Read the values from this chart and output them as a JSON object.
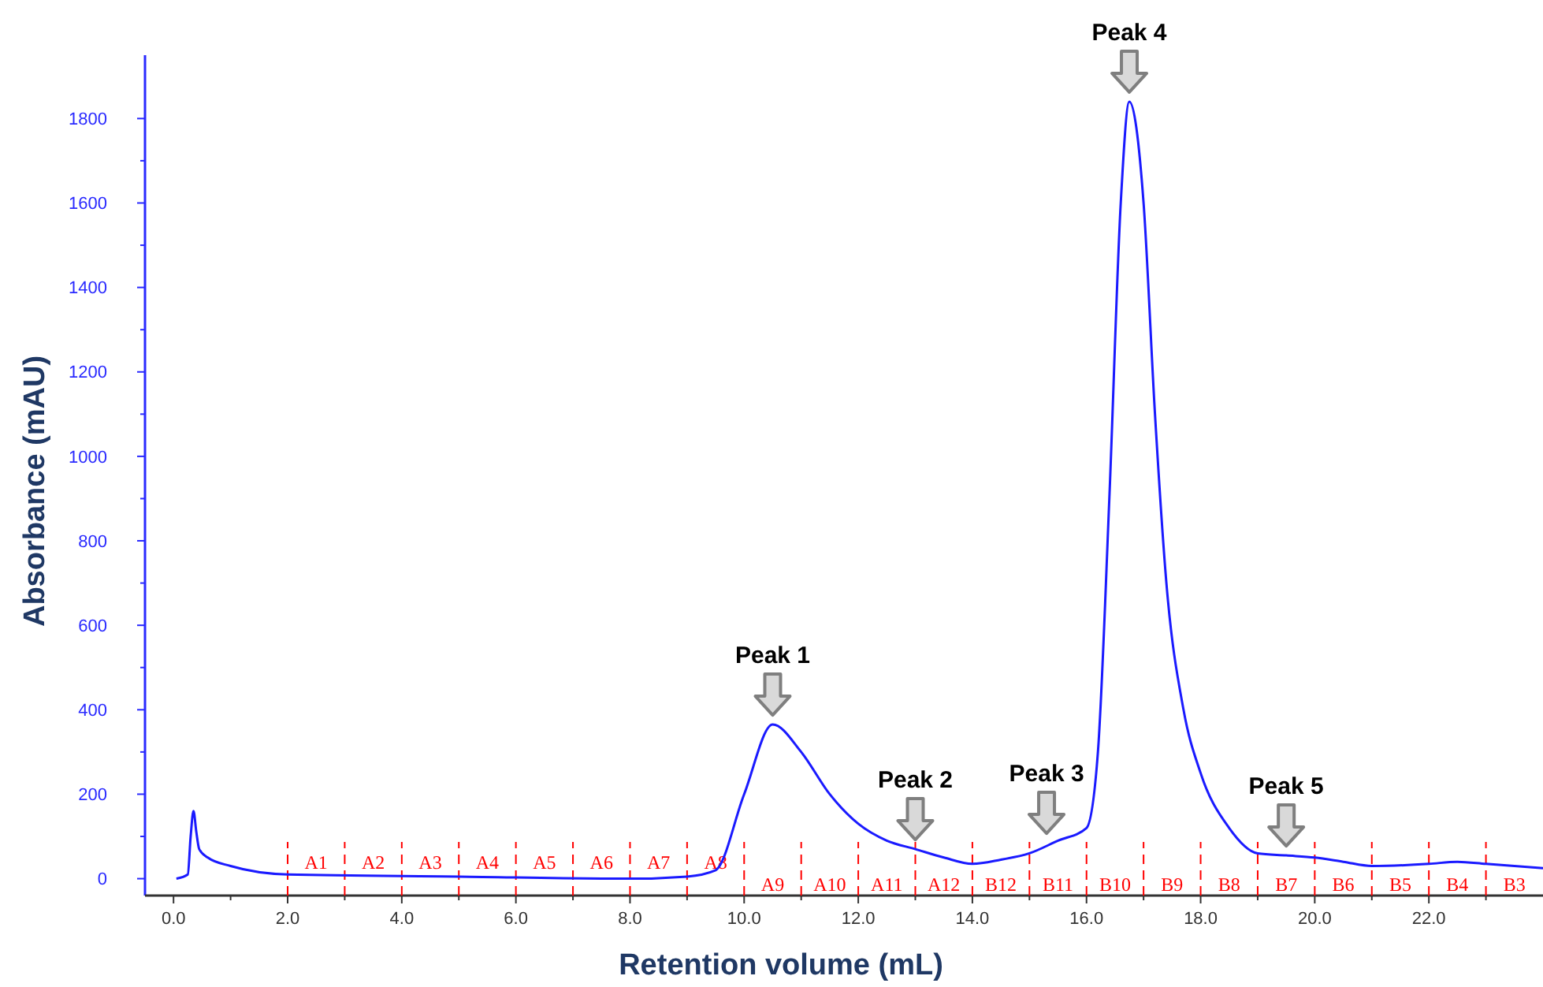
{
  "chart_data": {
    "type": "line",
    "xlabel": "Retention volume (mL)",
    "ylabel": "Absorbance (mAU)",
    "xlim": [
      -0.5,
      24
    ],
    "ylim": [
      -40,
      1950
    ],
    "xticks": [
      {
        "value": 0,
        "label": "0.0"
      },
      {
        "value": 1,
        "label": null
      },
      {
        "value": 2,
        "label": "2.0"
      },
      {
        "value": 3,
        "label": null
      },
      {
        "value": 4,
        "label": "4.0"
      },
      {
        "value": 5,
        "label": null
      },
      {
        "value": 6,
        "label": "6.0"
      },
      {
        "value": 7,
        "label": null
      },
      {
        "value": 8,
        "label": "8.0"
      },
      {
        "value": 9,
        "label": null
      },
      {
        "value": 10,
        "label": "10.0"
      },
      {
        "value": 11,
        "label": null
      },
      {
        "value": 12,
        "label": "12.0"
      },
      {
        "value": 13,
        "label": null
      },
      {
        "value": 14,
        "label": "14.0"
      },
      {
        "value": 15,
        "label": null
      },
      {
        "value": 16,
        "label": "16.0"
      },
      {
        "value": 17,
        "label": null
      },
      {
        "value": 18,
        "label": "18.0"
      },
      {
        "value": 19,
        "label": null
      },
      {
        "value": 20,
        "label": "20.0"
      },
      {
        "value": 21,
        "label": null
      },
      {
        "value": 22,
        "label": "22.0"
      },
      {
        "value": 23,
        "label": null
      }
    ],
    "yticks": [
      0,
      {
        "value": 100,
        "label": null
      },
      200,
      {
        "value": 300,
        "label": null
      },
      400,
      {
        "value": 500,
        "label": null
      },
      600,
      {
        "value": 700,
        "label": null
      },
      800,
      {
        "value": 900,
        "label": null
      },
      1000,
      {
        "value": 1100,
        "label": null
      },
      1200,
      {
        "value": 1300,
        "label": null
      },
      1400,
      {
        "value": 1500,
        "label": null
      },
      1600,
      {
        "value": 1700,
        "label": null
      },
      1800
    ],
    "grid": false,
    "marker": "none",
    "line_style": "solid",
    "series": [
      {
        "color": "#1a1aff",
        "x": [
          0.05,
          0.25,
          0.3,
          0.35,
          0.4,
          0.45,
          0.6,
          1.0,
          2.0,
          5.0,
          8.0,
          9.0,
          9.5,
          10.0,
          10.5,
          11.0,
          11.5,
          12.0,
          12.5,
          13.0,
          13.5,
          14.0,
          14.5,
          15.0,
          15.5,
          16.0,
          16.2,
          16.4,
          16.6,
          16.75,
          17.0,
          17.2,
          17.4,
          17.7,
          18.0,
          18.5,
          19.0,
          19.5,
          20.0,
          20.5,
          21.0,
          22.0,
          22.5,
          23.0,
          24.0
        ],
        "values": [
          0,
          10,
          100,
          160,
          110,
          70,
          50,
          30,
          10,
          5,
          0,
          5,
          20,
          200,
          365,
          300,
          200,
          130,
          90,
          70,
          50,
          35,
          45,
          60,
          90,
          120,
          300,
          900,
          1600,
          1840,
          1600,
          1100,
          700,
          400,
          250,
          120,
          60,
          55,
          50,
          40,
          30,
          35,
          40,
          35,
          25
        ]
      }
    ],
    "ref_lines": [
      {
        "axis": "x",
        "value": 2,
        "label": "A1",
        "color": "#ff0000",
        "line_style": "dashed"
      },
      {
        "axis": "x",
        "value": 3,
        "label": "A2",
        "color": "#ff0000",
        "line_style": "dashed"
      },
      {
        "axis": "x",
        "value": 4,
        "label": "A3",
        "color": "#ff0000",
        "line_style": "dashed"
      },
      {
        "axis": "x",
        "value": 5,
        "label": "A4",
        "color": "#ff0000",
        "line_style": "dashed"
      },
      {
        "axis": "x",
        "value": 6,
        "label": "A5",
        "color": "#ff0000",
        "line_style": "dashed"
      },
      {
        "axis": "x",
        "value": 7,
        "label": "A6",
        "color": "#ff0000",
        "line_style": "dashed"
      },
      {
        "axis": "x",
        "value": 8,
        "label": "A7",
        "color": "#ff0000",
        "line_style": "dashed"
      },
      {
        "axis": "x",
        "value": 9,
        "label": "A8",
        "color": "#ff0000",
        "line_style": "dashed"
      },
      {
        "axis": "x",
        "value": 10,
        "label": "A9",
        "color": "#ff0000",
        "line_style": "dashed"
      },
      {
        "axis": "x",
        "value": 11,
        "label": "A10",
        "color": "#ff0000",
        "line_style": "dashed"
      },
      {
        "axis": "x",
        "value": 12,
        "label": "A11",
        "color": "#ff0000",
        "line_style": "dashed"
      },
      {
        "axis": "x",
        "value": 13,
        "label": "A12",
        "color": "#ff0000",
        "line_style": "dashed"
      },
      {
        "axis": "x",
        "value": 14,
        "label": "B12",
        "color": "#ff0000",
        "line_style": "dashed"
      },
      {
        "axis": "x",
        "value": 15,
        "label": "B11",
        "color": "#ff0000",
        "line_style": "dashed"
      },
      {
        "axis": "x",
        "value": 16,
        "label": "B10",
        "color": "#ff0000",
        "line_style": "dashed"
      },
      {
        "axis": "x",
        "value": 17,
        "label": "B9",
        "color": "#ff0000",
        "line_style": "dashed"
      },
      {
        "axis": "x",
        "value": 18,
        "label": "B8",
        "color": "#ff0000",
        "line_style": "dashed"
      },
      {
        "axis": "x",
        "value": 19,
        "label": "B7",
        "color": "#ff0000",
        "line_style": "dashed"
      },
      {
        "axis": "x",
        "value": 20,
        "label": "B6",
        "color": "#ff0000",
        "line_style": "dashed"
      },
      {
        "axis": "x",
        "value": 21,
        "label": "B5",
        "color": "#ff0000",
        "line_style": "dashed"
      },
      {
        "axis": "x",
        "value": 22,
        "label": "B4",
        "color": "#ff0000",
        "line_style": "dashed"
      },
      {
        "axis": "x",
        "value": 23,
        "label": "B3",
        "color": "#ff0000",
        "line_style": "dashed"
      }
    ],
    "annotations": [
      {
        "text": "Peak 1",
        "x": 10.5,
        "y": 365
      },
      {
        "text": "Peak 2",
        "x": 13.0,
        "y": 70
      },
      {
        "text": "Peak 3",
        "x": 15.3,
        "y": 85
      },
      {
        "text": "Peak 4",
        "x": 16.75,
        "y": 1840
      },
      {
        "text": "Peak 5",
        "x": 19.5,
        "y": 55
      }
    ]
  }
}
